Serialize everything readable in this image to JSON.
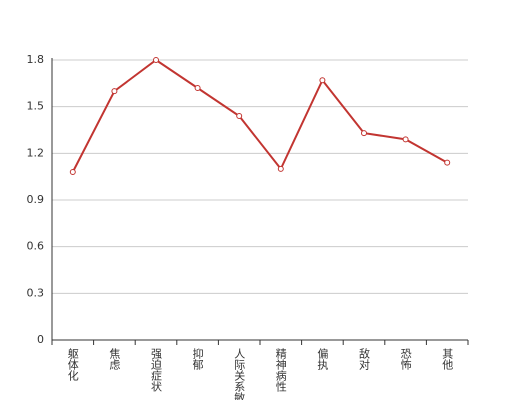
{
  "chart_data": {
    "type": "line",
    "categories": [
      "躯体化",
      "焦虑",
      "强迫症状",
      "抑郁",
      "人际关系敏感",
      "精神病性",
      "偏执",
      "敌对",
      "恐怖",
      "其他"
    ],
    "series": [
      {
        "color": "#c23531",
        "values": [
          1.08,
          1.6,
          1.8,
          1.62,
          1.44,
          1.1,
          1.67,
          1.33,
          1.29,
          1.14
        ]
      }
    ],
    "ylim": [
      0,
      1.8
    ],
    "yticks": [
      0,
      0.3,
      0.6,
      0.9,
      1.2,
      1.5,
      1.8
    ],
    "grid": true
  }
}
